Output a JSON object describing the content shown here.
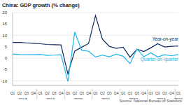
{
  "chart_data": {
    "type": "line",
    "title": "China: GDP growth (% change)",
    "source": "Source: National Bureau of Statistics",
    "categories": [
      "Q1",
      "Q2",
      "Q3",
      "Q4",
      "Q1",
      "Q2",
      "Q3",
      "Q4",
      "Q1",
      "Q2",
      "Q3",
      "Q4",
      "Q1",
      "Q2",
      "Q3",
      "Q4",
      "Q1",
      "Q2",
      "Q3",
      "Q4",
      "Q1",
      "Q2",
      "Q3",
      "Q4",
      "Q1"
    ],
    "years": [
      "2018",
      "2019",
      "2020",
      "2021",
      "2022",
      "2023",
      "2024"
    ],
    "series": [
      {
        "name": "Year-on-year",
        "color": "#0b2a5b",
        "values": [
          6.9,
          6.9,
          6.7,
          6.5,
          6.3,
          6.0,
          5.9,
          5.8,
          -6.9,
          3.1,
          4.8,
          6.4,
          18.7,
          8.3,
          5.2,
          4.3,
          4.8,
          0.4,
          3.9,
          2.9,
          4.5,
          6.3,
          4.9,
          5.2,
          5.3
        ]
      },
      {
        "name": "Quarter-on-quarter",
        "color": "#1cb4e8",
        "values": [
          1.8,
          1.6,
          1.5,
          1.5,
          1.6,
          1.2,
          1.3,
          1.5,
          -10.3,
          11.5,
          3.4,
          3.0,
          0.5,
          1.3,
          0.6,
          1.7,
          0.8,
          -2.4,
          4.0,
          0.6,
          2.3,
          0.5,
          1.5,
          1.0,
          1.6
        ]
      }
    ],
    "ylim": [
      -12,
      20
    ],
    "yticks": [
      -10,
      -5,
      0,
      5,
      10,
      15,
      20
    ],
    "grid": true
  }
}
